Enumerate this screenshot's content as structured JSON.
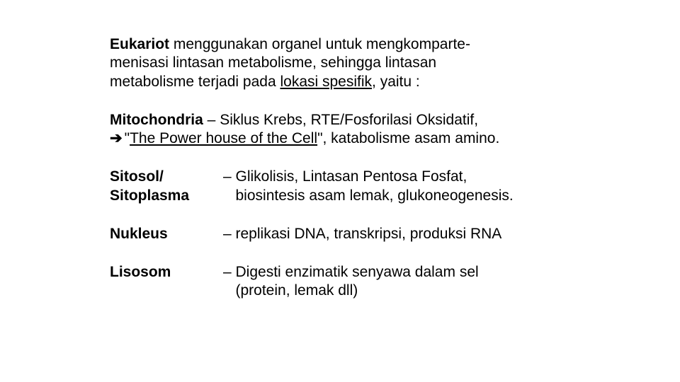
{
  "intro": {
    "lead": "Eukariot",
    "line1_rest": " menggunakan organel untuk mengkomparte-",
    "line2": "menisasi lintasan metabolisme, sehingga lintasan",
    "line3_a": "metabolisme terjadi pada ",
    "line3_underlined": "lokasi spesifik",
    "line3_b": ", yaitu :"
  },
  "mito": {
    "label": "Mitochondria",
    "dash": " – ",
    "tail1": "Siklus Krebs, RTE/Fosforilasi Oksidatif,",
    "quote_a": "\"",
    "quote_ul": "The Power house of the Cell",
    "quote_b": "\",  katabolisme asam amino."
  },
  "sitosol": {
    "label1": "Sitosol/",
    "label2": "Sitoplasma",
    "desc1": "– Glikolisis, Lintasan Pentosa Fosfat,",
    "desc2": "   biosintesis asam lemak, glukoneogenesis."
  },
  "nukleus": {
    "label": "Nukleus",
    "desc": "– replikasi DNA, transkripsi, produksi RNA"
  },
  "lisosom": {
    "label": "Lisosom",
    "desc1": "– Digesti enzimatik senyawa dalam sel",
    "desc2": "   (protein, lemak dll)"
  }
}
